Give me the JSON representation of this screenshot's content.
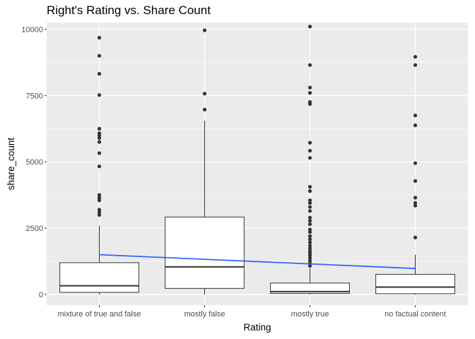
{
  "chart_data": {
    "type": "boxplot",
    "title": "Right's Rating vs. Share Count",
    "xlabel": "Rating",
    "ylabel": "share_count",
    "categories": [
      "mixture of true and false",
      "mostly false",
      "mostly true",
      "no factual content"
    ],
    "ylim": [
      -400,
      10250
    ],
    "yticks": [
      0,
      2500,
      5000,
      7500,
      10000
    ],
    "grid": true,
    "legend": "none",
    "colors": {
      "panel": "#ebebeb",
      "grid": "#ffffff",
      "box_fill": "#ffffff",
      "box_line": "#333333",
      "trend": "#3366ff",
      "outlier": "#333333"
    },
    "boxes": [
      {
        "q1": 80,
        "median": 330,
        "q3": 1200,
        "lower": 0,
        "upper": 2600,
        "outliers": [
          3000,
          3100,
          3200,
          3550,
          3650,
          3750,
          4830,
          5330,
          5750,
          5900,
          6000,
          6080,
          6250,
          7520,
          8320,
          9000,
          9680
        ]
      },
      {
        "q1": 230,
        "median": 1040,
        "q3": 2920,
        "lower": 0,
        "upper": 6550,
        "outliers": [
          6970,
          7570,
          9960
        ]
      },
      {
        "q1": 40,
        "median": 110,
        "q3": 430,
        "lower": 0,
        "upper": 1000,
        "outliers": [
          1080,
          1180,
          1280,
          1380,
          1480,
          1560,
          1640,
          1740,
          1840,
          1960,
          2080,
          2200,
          2350,
          2450,
          2650,
          2780,
          2900,
          3150,
          3300,
          3450,
          3550,
          3900,
          4060,
          5150,
          5420,
          5720,
          7180,
          7260,
          7600,
          7800,
          8650,
          10100
        ]
      },
      {
        "q1": 30,
        "median": 280,
        "q3": 760,
        "lower": 0,
        "upper": 1500,
        "outliers": [
          2150,
          3350,
          3450,
          3650,
          4280,
          4950,
          6380,
          6750,
          8650,
          8960
        ]
      }
    ],
    "trend_line": {
      "x_start": 1,
      "y_start": 1500,
      "x_end": 4,
      "y_end": 980
    }
  }
}
